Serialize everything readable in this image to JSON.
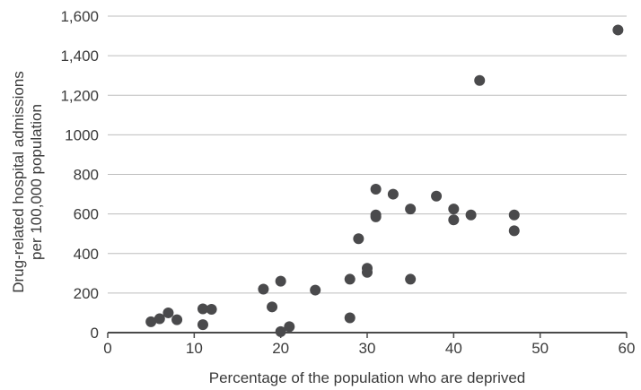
{
  "chart_data": {
    "type": "scatter",
    "title": "",
    "xlabel": "Percentage of the population who are deprived",
    "ylabel_lines": [
      "Drug-related hospital admissions",
      "per 100,000 population"
    ],
    "xlim": [
      0,
      60
    ],
    "ylim": [
      0,
      1600
    ],
    "x_ticks": [
      {
        "value": 0,
        "label": "0"
      },
      {
        "value": 10,
        "label": "10"
      },
      {
        "value": 20,
        "label": "20"
      },
      {
        "value": 30,
        "label": "30"
      },
      {
        "value": 40,
        "label": "40"
      },
      {
        "value": 50,
        "label": "50"
      },
      {
        "value": 60,
        "label": "60"
      }
    ],
    "y_ticks": [
      {
        "value": 0,
        "label": "0"
      },
      {
        "value": 200,
        "label": "200"
      },
      {
        "value": 400,
        "label": "400"
      },
      {
        "value": 600,
        "label": "600"
      },
      {
        "value": 800,
        "label": "800"
      },
      {
        "value": 1000,
        "label": "1000"
      },
      {
        "value": 1200,
        "label": "1,200"
      },
      {
        "value": 1400,
        "label": "1,400"
      },
      {
        "value": 1600,
        "label": "1,600"
      }
    ],
    "grid": "horizontal",
    "colors": {
      "point": "#4a4a4c",
      "grid": "#bdbdbd",
      "axis": "#4a4a4a",
      "text": "#3a3a3a"
    },
    "series": [
      {
        "points": [
          {
            "x": 5,
            "y": 55
          },
          {
            "x": 6,
            "y": 70
          },
          {
            "x": 7,
            "y": 100
          },
          {
            "x": 8,
            "y": 65
          },
          {
            "x": 11,
            "y": 120
          },
          {
            "x": 11,
            "y": 40
          },
          {
            "x": 12,
            "y": 118
          },
          {
            "x": 18,
            "y": 220
          },
          {
            "x": 19,
            "y": 130
          },
          {
            "x": 20,
            "y": 260
          },
          {
            "x": 20,
            "y": 5
          },
          {
            "x": 21,
            "y": 30
          },
          {
            "x": 24,
            "y": 215
          },
          {
            "x": 28,
            "y": 270
          },
          {
            "x": 28,
            "y": 75
          },
          {
            "x": 29,
            "y": 475
          },
          {
            "x": 30,
            "y": 325
          },
          {
            "x": 30,
            "y": 305
          },
          {
            "x": 31,
            "y": 725
          },
          {
            "x": 31,
            "y": 595
          },
          {
            "x": 31,
            "y": 585
          },
          {
            "x": 33,
            "y": 700
          },
          {
            "x": 35,
            "y": 625
          },
          {
            "x": 35,
            "y": 270
          },
          {
            "x": 38,
            "y": 690
          },
          {
            "x": 40,
            "y": 625
          },
          {
            "x": 40,
            "y": 570
          },
          {
            "x": 42,
            "y": 595
          },
          {
            "x": 43,
            "y": 1275
          },
          {
            "x": 47,
            "y": 595
          },
          {
            "x": 47,
            "y": 515
          },
          {
            "x": 59,
            "y": 1530
          }
        ]
      }
    ]
  }
}
